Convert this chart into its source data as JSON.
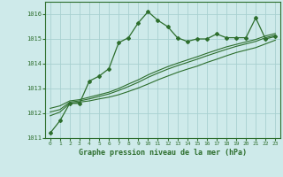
{
  "xlabel": "Graphe pression niveau de la mer (hPa)",
  "background_color": "#ceeaea",
  "grid_color": "#a8d0d0",
  "line_color": "#2d6e2d",
  "xlim": [
    -0.5,
    23.5
  ],
  "ylim": [
    1011,
    1016.5
  ],
  "yticks": [
    1011,
    1012,
    1013,
    1014,
    1015,
    1016
  ],
  "xticks": [
    0,
    1,
    2,
    3,
    4,
    5,
    6,
    7,
    8,
    9,
    10,
    11,
    12,
    13,
    14,
    15,
    16,
    17,
    18,
    19,
    20,
    21,
    22,
    23
  ],
  "series1_x": [
    0,
    1,
    2,
    3,
    4,
    5,
    6,
    7,
    8,
    9,
    10,
    11,
    12,
    13,
    14,
    15,
    16,
    17,
    18,
    19,
    20,
    21,
    22,
    23
  ],
  "series1_y": [
    1011.2,
    1011.7,
    1012.4,
    1012.4,
    1013.3,
    1013.5,
    1013.8,
    1014.85,
    1015.05,
    1015.65,
    1016.1,
    1015.75,
    1015.5,
    1015.05,
    1014.9,
    1015.0,
    1015.0,
    1015.2,
    1015.05,
    1015.05,
    1015.05,
    1015.85,
    1015.0,
    1015.1
  ],
  "series2_x": [
    0,
    1,
    2,
    3,
    4,
    5,
    6,
    7,
    8,
    9,
    10,
    11,
    12,
    13,
    14,
    15,
    16,
    17,
    18,
    19,
    20,
    21,
    22,
    23
  ],
  "series2_y": [
    1011.9,
    1012.05,
    1012.4,
    1012.45,
    1012.5,
    1012.58,
    1012.65,
    1012.75,
    1012.88,
    1013.02,
    1013.18,
    1013.35,
    1013.5,
    1013.65,
    1013.78,
    1013.9,
    1014.05,
    1014.18,
    1014.32,
    1014.45,
    1014.55,
    1014.65,
    1014.8,
    1014.95
  ],
  "series3_x": [
    0,
    1,
    2,
    3,
    4,
    5,
    6,
    7,
    8,
    9,
    10,
    11,
    12,
    13,
    14,
    15,
    16,
    17,
    18,
    19,
    20,
    21,
    22,
    23
  ],
  "series3_y": [
    1012.05,
    1012.15,
    1012.45,
    1012.5,
    1012.58,
    1012.68,
    1012.78,
    1012.92,
    1013.08,
    1013.25,
    1013.45,
    1013.62,
    1013.78,
    1013.92,
    1014.05,
    1014.18,
    1014.32,
    1014.45,
    1014.58,
    1014.7,
    1014.8,
    1014.9,
    1015.05,
    1015.15
  ],
  "series4_x": [
    0,
    1,
    2,
    3,
    4,
    5,
    6,
    7,
    8,
    9,
    10,
    11,
    12,
    13,
    14,
    15,
    16,
    17,
    18,
    19,
    20,
    21,
    22,
    23
  ],
  "series4_y": [
    1012.2,
    1012.3,
    1012.5,
    1012.55,
    1012.65,
    1012.75,
    1012.85,
    1013.0,
    1013.18,
    1013.35,
    1013.55,
    1013.72,
    1013.88,
    1014.02,
    1014.15,
    1014.28,
    1014.42,
    1014.55,
    1014.68,
    1014.78,
    1014.88,
    1014.98,
    1015.12,
    1015.22
  ]
}
